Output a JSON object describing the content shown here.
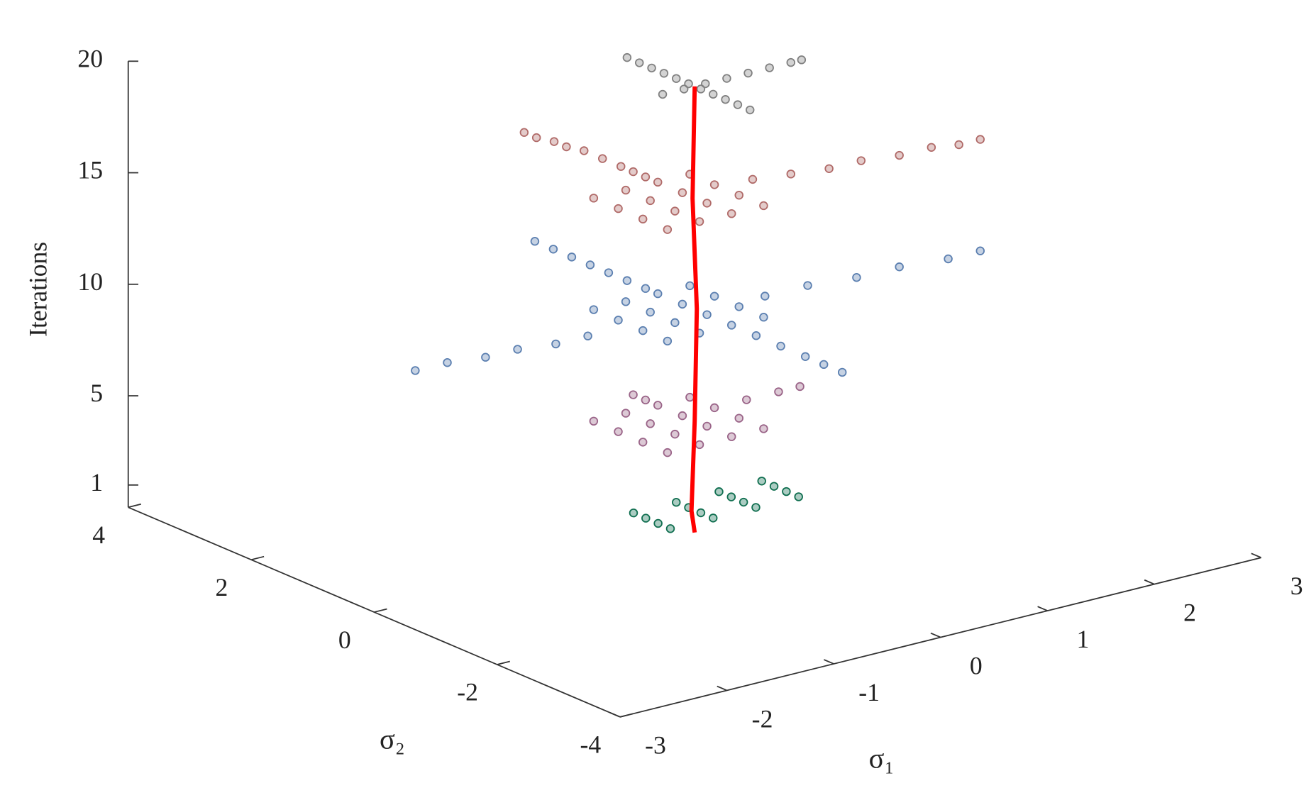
{
  "chart_data": {
    "type": "scatter3d",
    "x_label": "σ₁",
    "y_label": "σ₂",
    "z_label": "Iterations",
    "xlim": [
      -3,
      3
    ],
    "xticks": [
      -3,
      -2,
      -1,
      0,
      1,
      2,
      3
    ],
    "ylim": [
      -4,
      4
    ],
    "yticks": [
      -4,
      -2,
      0,
      2,
      4
    ],
    "zlim": [
      0,
      20
    ],
    "zticks": [
      1,
      5,
      10,
      15,
      20
    ],
    "series": [
      {
        "color": "#0f6e4f",
        "z": 1,
        "x": [
          -0.4,
          0,
          0.4,
          0.8,
          -0.4,
          0,
          0.4,
          0.8,
          -0.4,
          0,
          0.4,
          0.8,
          -0.4,
          0,
          0.4,
          0.8
        ],
        "y": [
          0.3,
          0.3,
          0.3,
          0.3,
          0.1,
          0.1,
          0.1,
          0.1,
          -0.1,
          -0.1,
          -0.1,
          -0.1,
          -0.3,
          -0.3,
          -0.3,
          -0.3
        ]
      },
      {
        "color": "#9a6488",
        "z": 5,
        "x": [
          0,
          0,
          0.6,
          0.9,
          1.1,
          -0.6,
          -0.3,
          0,
          0.3,
          -0.6,
          -0.3,
          0,
          0.3,
          -0.6,
          -0.3,
          0,
          0.3,
          -0.6,
          -0.3,
          0,
          0.3
        ],
        "y": [
          1.0,
          0.8,
          0.2,
          0.2,
          0.2,
          0.6,
          0.6,
          0.6,
          0.6,
          0.2,
          0.2,
          0.2,
          0.2,
          -0.2,
          -0.2,
          -0.2,
          -0.2,
          -0.6,
          -0.6,
          -0.6,
          -0.6
        ]
      },
      {
        "color": "#5b7fb0",
        "z": 10,
        "x": [
          0,
          0,
          0,
          0,
          0,
          0,
          0,
          0,
          0,
          0,
          0,
          0,
          -2.5,
          -2.2,
          -1.9,
          -1.6,
          -1.3,
          -1.0,
          0.6,
          1.0,
          1.4,
          1.8,
          2.2,
          2.5,
          -0.6,
          -0.3,
          0,
          0.3,
          -0.6,
          -0.3,
          0,
          0.3,
          -0.6,
          -0.3,
          0,
          0.3,
          -0.6,
          -0.3,
          0,
          0.3
        ],
        "y": [
          2.6,
          2.3,
          2.0,
          1.7,
          1.4,
          1.1,
          0.8,
          -1.0,
          -1.4,
          -1.8,
          -2.1,
          -2.4,
          0.2,
          0.2,
          0.1,
          0.1,
          0,
          0,
          -0.1,
          -0.1,
          -0.2,
          -0.2,
          -0.3,
          -0.3,
          0.6,
          0.6,
          0.6,
          0.6,
          0.2,
          0.2,
          0.2,
          0.2,
          -0.2,
          -0.2,
          -0.2,
          -0.2,
          -0.6,
          -0.6,
          -0.6,
          -0.6
        ]
      },
      {
        "color": "#b06a68",
        "z": 15,
        "x": [
          -0.1,
          -0.1,
          -0.05,
          -0.05,
          0,
          0,
          0,
          0,
          0,
          0.6,
          0.9,
          1.2,
          1.5,
          1.8,
          2.1,
          2.3,
          2.5,
          -0.6,
          -0.3,
          0,
          0.3,
          -0.6,
          -0.3,
          0,
          0.3,
          -0.6,
          -0.3,
          0,
          0.3,
          -0.6,
          -0.3,
          0,
          0.3
        ],
        "y": [
          2.6,
          2.4,
          2.2,
          2.0,
          1.8,
          1.5,
          1.2,
          1.0,
          0.8,
          0.1,
          0,
          -0.1,
          -0.1,
          -0.2,
          -0.2,
          -0.3,
          -0.3,
          0.6,
          0.6,
          0.6,
          0.6,
          0.2,
          0.2,
          0.2,
          0.2,
          -0.2,
          -0.2,
          -0.2,
          -0.2,
          -0.6,
          -0.6,
          -0.6,
          -0.6
        ]
      },
      {
        "color": "#808080",
        "z": 20,
        "x": [
          0,
          0,
          0,
          0,
          0,
          0,
          0,
          0,
          0,
          0,
          0,
          -0.3,
          -0.1,
          0.1,
          0.3,
          0.5,
          0.7,
          0.9,
          1.0
        ],
        "y": [
          1.1,
          0.9,
          0.7,
          0.5,
          0.3,
          0.1,
          -0.1,
          -0.3,
          -0.5,
          -0.7,
          -0.9,
          0,
          0,
          0,
          0,
          0,
          0,
          0,
          0
        ]
      },
      {
        "color": "#ff0000",
        "style": "line",
        "x": [
          0,
          -0.03,
          0,
          0.02,
          -0.02,
          0
        ],
        "y": [
          0,
          0,
          0,
          0,
          0,
          0
        ],
        "z": [
          0,
          1,
          5,
          10,
          15,
          20
        ]
      }
    ]
  }
}
